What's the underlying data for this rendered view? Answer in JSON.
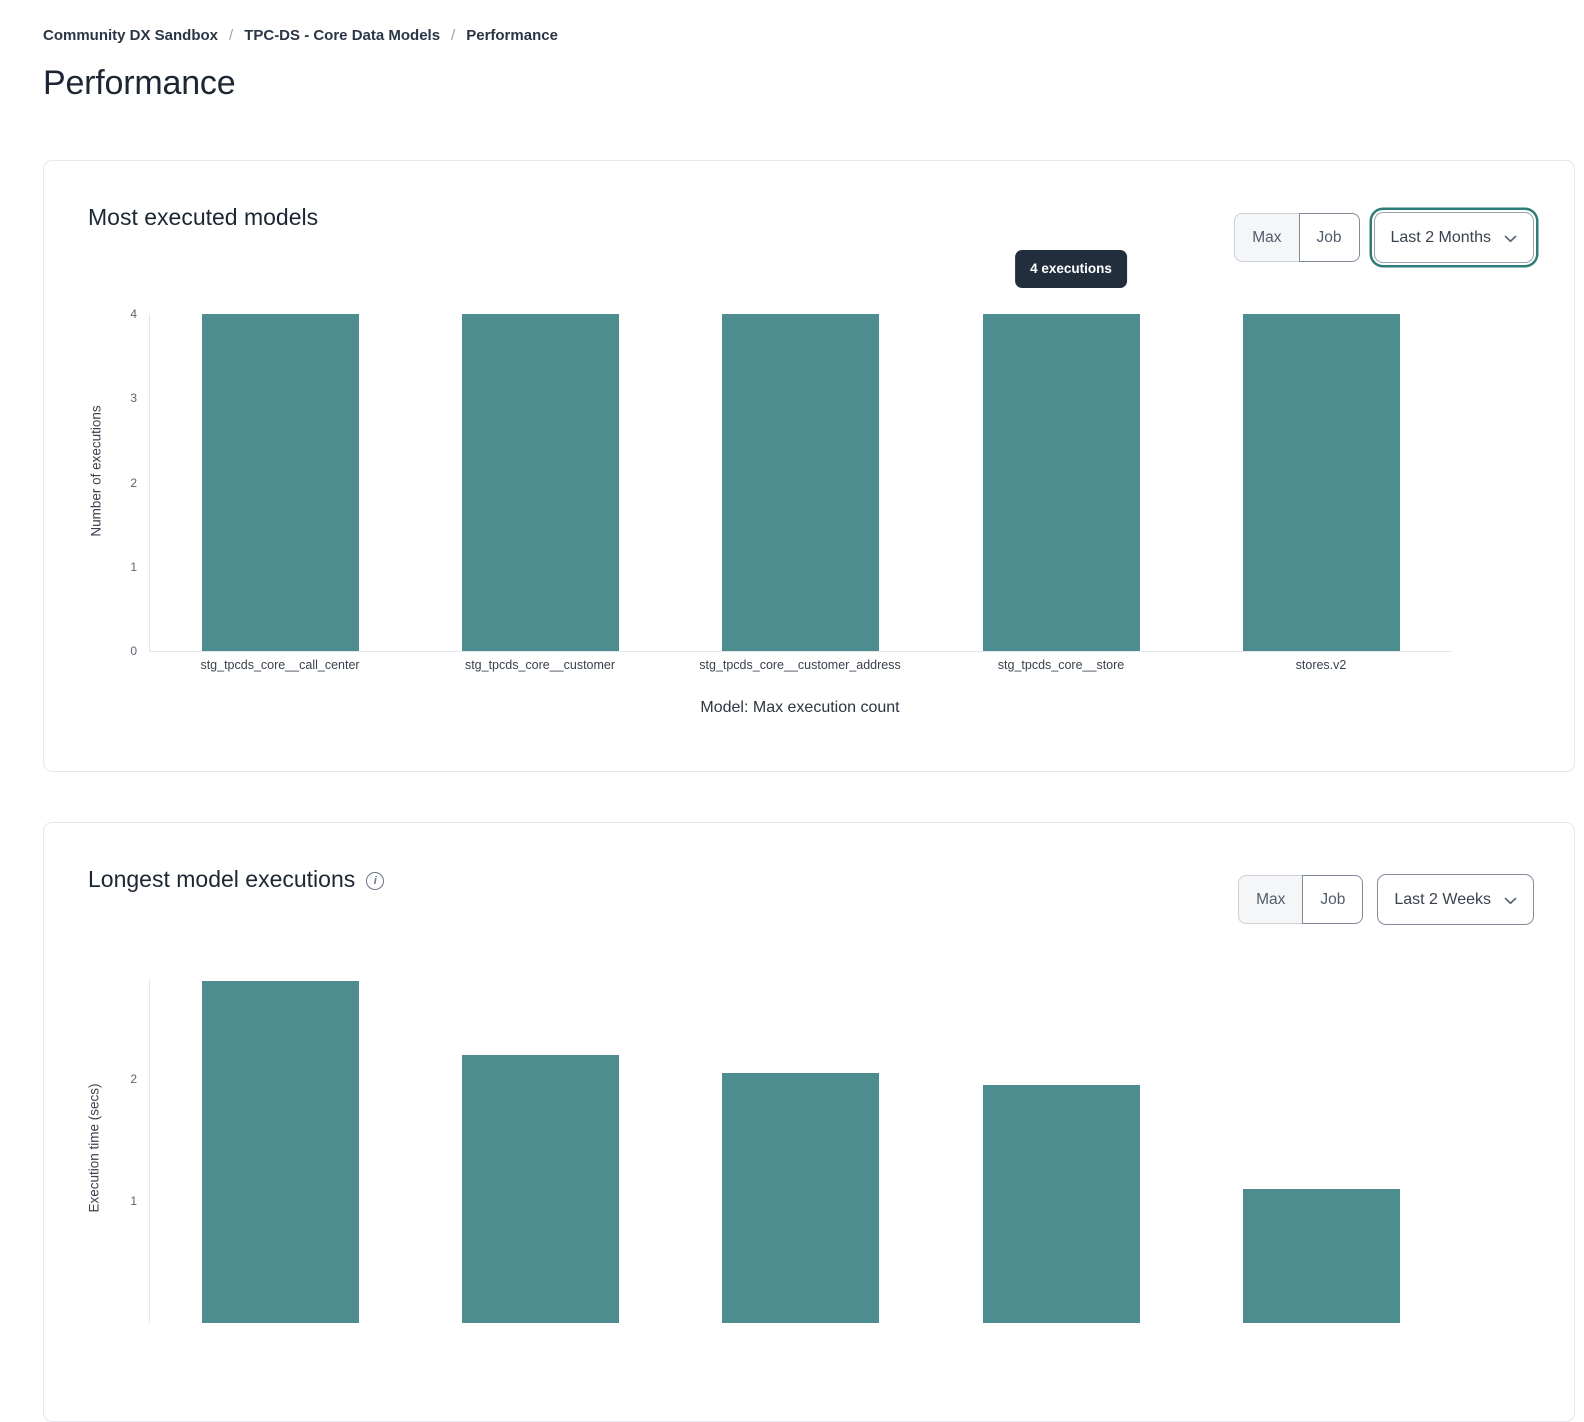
{
  "breadcrumb": {
    "items": [
      "Community DX Sandbox",
      "TPC-DS - Core Data Models",
      "Performance"
    ],
    "separator": "/"
  },
  "page": {
    "title": "Performance"
  },
  "theme": {
    "bar_color": "#4e8d8f",
    "accent_teal": "#2e7d78",
    "tooltip_bg": "#232e3d",
    "card_border": "#e4e7ec"
  },
  "icons": {
    "dropdown_chevron": "chevron-down-icon",
    "card2_title_info": "info-circle-icon"
  },
  "cards": [
    {
      "title": "Most executed models",
      "controls": {
        "segmented": [
          "Max",
          "Job"
        ],
        "dropdown_value": "Last 2 Months",
        "dropdown_state": "focused"
      },
      "tooltip": "4 executions"
    },
    {
      "title": "Longest model executions",
      "controls": {
        "segmented": [
          "Max",
          "Job"
        ],
        "dropdown_value": "Last 2 Weeks",
        "dropdown_state": "default"
      }
    }
  ],
  "chart_data": [
    {
      "type": "bar",
      "title": "Most executed models",
      "categories": [
        "stg_tpcds_core__call_center",
        "stg_tpcds_core__customer",
        "stg_tpcds_core__customer_address",
        "stg_tpcds_core__store",
        "stores.v2"
      ],
      "values": [
        4,
        4,
        4,
        4,
        4
      ],
      "xlabel": "Model: Max execution count",
      "ylabel": "Number of executions",
      "yticks": [
        0,
        1,
        2,
        3,
        4
      ],
      "ylim": [
        0,
        4
      ],
      "bar_color": "#4e8d8f",
      "annotation": "4 executions",
      "legend": "none",
      "grid": "off"
    },
    {
      "type": "bar",
      "title": "Longest model executions",
      "categories": [
        "",
        "",
        "",
        "",
        ""
      ],
      "values": [
        2.8,
        2.2,
        2.05,
        1.95,
        1.1
      ],
      "ylabel": "Execution time (secs)",
      "yticks_visible": [
        1,
        2
      ],
      "ylim": [
        0,
        2.9
      ],
      "bar_color": "#4e8d8f",
      "legend": "none",
      "grid": "off",
      "note_visible_region": "x-axis category labels are cut off at the bottom edge of the viewport"
    }
  ]
}
